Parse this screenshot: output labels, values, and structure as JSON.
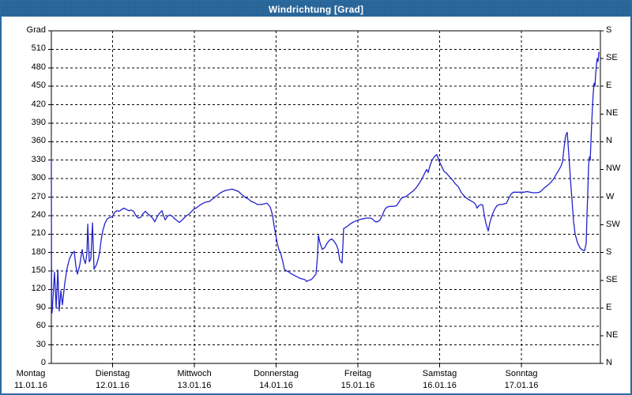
{
  "window": {
    "title": "Windrichtung [Grad]"
  },
  "colors": {
    "titlebar": "#2b6a9e",
    "window_border": "#2b6a9e",
    "title_text": "#ffffff",
    "line": "#2222cc",
    "grid": "#000000",
    "background": "#ffffff"
  },
  "chart_data": {
    "type": "line",
    "title": "Windrichtung [Grad]",
    "grid": "dashed",
    "y_axis_left": {
      "unit": "Grad",
      "min": 0,
      "max": 540,
      "step": 30,
      "tick_labels": [
        "0",
        "30",
        "60",
        "90",
        "120",
        "150",
        "180",
        "210",
        "240",
        "270",
        "300",
        "330",
        "360",
        "390",
        "420",
        "450",
        "480",
        "510"
      ]
    },
    "y_axis_right": {
      "step": 45,
      "labels_bottom_to_top": [
        "N",
        "NE",
        "E",
        "SE",
        "S",
        "SW",
        "W",
        "NW",
        "N",
        "NE",
        "E",
        "SE",
        "S"
      ]
    },
    "x_axis": {
      "unit": "days_from_monday_midnight",
      "domain": [
        0.251,
        6.966
      ],
      "midnight_gridlines": [
        1,
        2,
        3,
        4,
        5,
        6
      ],
      "day_labels": [
        {
          "name": "Montag",
          "date": "11.01.16",
          "t": 0
        },
        {
          "name": "Dienstag",
          "date": "12.01.16",
          "t": 1
        },
        {
          "name": "Mittwoch",
          "date": "13.01.16",
          "t": 2
        },
        {
          "name": "Donnerstag",
          "date": "14.01.16",
          "t": 3
        },
        {
          "name": "Freitag",
          "date": "15.01.16",
          "t": 4
        },
        {
          "name": "Samstag",
          "date": "16.01.16",
          "t": 5
        },
        {
          "name": "Sonntag",
          "date": "17.01.16",
          "t": 6
        }
      ]
    },
    "series": [
      {
        "name": "Windrichtung",
        "color": "#2222cc",
        "points": [
          [
            0.251,
            331
          ],
          [
            0.254,
            100
          ],
          [
            0.26,
            82
          ],
          [
            0.29,
            148
          ],
          [
            0.31,
            90
          ],
          [
            0.33,
            152
          ],
          [
            0.348,
            85
          ],
          [
            0.367,
            118
          ],
          [
            0.386,
            95
          ],
          [
            0.415,
            130
          ],
          [
            0.444,
            155
          ],
          [
            0.473,
            170
          ],
          [
            0.502,
            178
          ],
          [
            0.531,
            182
          ],
          [
            0.551,
            158
          ],
          [
            0.57,
            145
          ],
          [
            0.599,
            160
          ],
          [
            0.628,
            185
          ],
          [
            0.647,
            170
          ],
          [
            0.667,
            162
          ],
          [
            0.686,
            178
          ],
          [
            0.696,
            226
          ],
          [
            0.715,
            165
          ],
          [
            0.734,
            170
          ],
          [
            0.754,
            228
          ],
          [
            0.773,
            153
          ],
          [
            0.802,
            160
          ],
          [
            0.821,
            168
          ],
          [
            0.841,
            180
          ],
          [
            0.86,
            200
          ],
          [
            0.879,
            215
          ],
          [
            0.908,
            228
          ],
          [
            0.937,
            235
          ],
          [
            0.966,
            237
          ],
          [
            0.995,
            238
          ],
          [
            1.024,
            245
          ],
          [
            1.053,
            248
          ],
          [
            1.082,
            247
          ],
          [
            1.111,
            250
          ],
          [
            1.14,
            252
          ],
          [
            1.169,
            250
          ],
          [
            1.198,
            248
          ],
          [
            1.227,
            249
          ],
          [
            1.256,
            247
          ],
          [
            1.285,
            240
          ],
          [
            1.314,
            236
          ],
          [
            1.343,
            237
          ],
          [
            1.372,
            243
          ],
          [
            1.401,
            247
          ],
          [
            1.43,
            243
          ],
          [
            1.459,
            240
          ],
          [
            1.488,
            236
          ],
          [
            1.517,
            230
          ],
          [
            1.546,
            238
          ],
          [
            1.575,
            244
          ],
          [
            1.604,
            248
          ],
          [
            1.623,
            240
          ],
          [
            1.643,
            233
          ],
          [
            1.672,
            239
          ],
          [
            1.7,
            241
          ],
          [
            1.729,
            239
          ],
          [
            1.758,
            235
          ],
          [
            1.787,
            232
          ],
          [
            1.816,
            229
          ],
          [
            1.845,
            232
          ],
          [
            1.874,
            236
          ],
          [
            1.903,
            240
          ],
          [
            1.932,
            242
          ],
          [
            1.961,
            246
          ],
          [
            1.99,
            250
          ],
          [
            2.029,
            253
          ],
          [
            2.068,
            257
          ],
          [
            2.106,
            260
          ],
          [
            2.145,
            262
          ],
          [
            2.184,
            263
          ],
          [
            2.232,
            268
          ],
          [
            2.271,
            272
          ],
          [
            2.309,
            276
          ],
          [
            2.348,
            279
          ],
          [
            2.387,
            281
          ],
          [
            2.425,
            282
          ],
          [
            2.464,
            283
          ],
          [
            2.503,
            281
          ],
          [
            2.541,
            279
          ],
          [
            2.58,
            274
          ],
          [
            2.618,
            270
          ],
          [
            2.657,
            267
          ],
          [
            2.696,
            263
          ],
          [
            2.734,
            261
          ],
          [
            2.773,
            258
          ],
          [
            2.812,
            258
          ],
          [
            2.85,
            259
          ],
          [
            2.889,
            260
          ],
          [
            2.928,
            254
          ],
          [
            2.957,
            240
          ],
          [
            2.976,
            223
          ],
          [
            2.995,
            209
          ],
          [
            3.014,
            195
          ],
          [
            3.034,
            185
          ],
          [
            3.053,
            180
          ],
          [
            3.082,
            165
          ],
          [
            3.101,
            153
          ],
          [
            3.13,
            150
          ],
          [
            3.15,
            149
          ],
          [
            3.179,
            146
          ],
          [
            3.208,
            144
          ],
          [
            3.237,
            142
          ],
          [
            3.266,
            140
          ],
          [
            3.295,
            138
          ],
          [
            3.324,
            137
          ],
          [
            3.353,
            136
          ],
          [
            3.372,
            133
          ],
          [
            3.401,
            135
          ],
          [
            3.43,
            136
          ],
          [
            3.469,
            142
          ],
          [
            3.488,
            145
          ],
          [
            3.507,
            175
          ],
          [
            3.517,
            208
          ],
          [
            3.536,
            196
          ],
          [
            3.565,
            185
          ],
          [
            3.594,
            188
          ],
          [
            3.623,
            195
          ],
          [
            3.652,
            200
          ],
          [
            3.681,
            202
          ],
          [
            3.71,
            198
          ],
          [
            3.739,
            192
          ],
          [
            3.758,
            185
          ],
          [
            3.778,
            168
          ],
          [
            3.807,
            163
          ],
          [
            3.816,
            190
          ],
          [
            3.826,
            219
          ],
          [
            3.855,
            221
          ],
          [
            3.884,
            224
          ],
          [
            3.913,
            227
          ],
          [
            3.952,
            230
          ],
          [
            3.99,
            232
          ],
          [
            4.029,
            234
          ],
          [
            4.068,
            235
          ],
          [
            4.106,
            236
          ],
          [
            4.145,
            236
          ],
          [
            4.174,
            235
          ],
          [
            4.213,
            230
          ],
          [
            4.242,
            230
          ],
          [
            4.271,
            233
          ],
          [
            4.3,
            241
          ],
          [
            4.329,
            250
          ],
          [
            4.357,
            254
          ],
          [
            4.396,
            255
          ],
          [
            4.435,
            255
          ],
          [
            4.473,
            256
          ],
          [
            4.502,
            262
          ],
          [
            4.531,
            268
          ],
          [
            4.56,
            270
          ],
          [
            4.589,
            271
          ],
          [
            4.618,
            274
          ],
          [
            4.647,
            277
          ],
          [
            4.676,
            280
          ],
          [
            4.705,
            284
          ],
          [
            4.734,
            289
          ],
          [
            4.763,
            295
          ],
          [
            4.792,
            302
          ],
          [
            4.821,
            310
          ],
          [
            4.841,
            315
          ],
          [
            4.86,
            310
          ],
          [
            4.879,
            320
          ],
          [
            4.908,
            330
          ],
          [
            4.937,
            336
          ],
          [
            4.966,
            339
          ],
          [
            4.995,
            328
          ],
          [
            5.024,
            320
          ],
          [
            5.053,
            312
          ],
          [
            5.082,
            309
          ],
          [
            5.121,
            303
          ],
          [
            5.15,
            299
          ],
          [
            5.188,
            292
          ],
          [
            5.227,
            287
          ],
          [
            5.266,
            277
          ],
          [
            5.304,
            271
          ],
          [
            5.343,
            267
          ],
          [
            5.382,
            264
          ],
          [
            5.42,
            261
          ],
          [
            5.44,
            258
          ],
          [
            5.459,
            252
          ],
          [
            5.478,
            256
          ],
          [
            5.507,
            258
          ],
          [
            5.526,
            257
          ],
          [
            5.546,
            241
          ],
          [
            5.565,
            228
          ],
          [
            5.584,
            219
          ],
          [
            5.594,
            215
          ],
          [
            5.613,
            228
          ],
          [
            5.642,
            241
          ],
          [
            5.671,
            250
          ],
          [
            5.7,
            256
          ],
          [
            5.729,
            258
          ],
          [
            5.758,
            258
          ],
          [
            5.787,
            259
          ],
          [
            5.816,
            260
          ],
          [
            5.845,
            268
          ],
          [
            5.874,
            275
          ],
          [
            5.903,
            278
          ],
          [
            5.942,
            278
          ],
          [
            5.99,
            278
          ],
          [
            6.029,
            278
          ],
          [
            6.068,
            279
          ],
          [
            6.106,
            278
          ],
          [
            6.145,
            277
          ],
          [
            6.184,
            277
          ],
          [
            6.222,
            278
          ],
          [
            6.251,
            281
          ],
          [
            6.28,
            285
          ],
          [
            6.309,
            288
          ],
          [
            6.338,
            291
          ],
          [
            6.367,
            295
          ],
          [
            6.396,
            300
          ],
          [
            6.425,
            307
          ],
          [
            6.454,
            313
          ],
          [
            6.483,
            320
          ],
          [
            6.502,
            327
          ],
          [
            6.522,
            350
          ],
          [
            6.541,
            370
          ],
          [
            6.56,
            375
          ],
          [
            6.58,
            340
          ],
          [
            6.599,
            300
          ],
          [
            6.618,
            266
          ],
          [
            6.637,
            232
          ],
          [
            6.657,
            210
          ],
          [
            6.686,
            196
          ],
          [
            6.715,
            188
          ],
          [
            6.744,
            184
          ],
          [
            6.773,
            183
          ],
          [
            6.792,
            195
          ],
          [
            6.802,
            240
          ],
          [
            6.812,
            280
          ],
          [
            6.821,
            320
          ],
          [
            6.831,
            335
          ],
          [
            6.841,
            330
          ],
          [
            6.85,
            360
          ],
          [
            6.86,
            390
          ],
          [
            6.87,
            420
          ],
          [
            6.879,
            440
          ],
          [
            6.889,
            455
          ],
          [
            6.899,
            450
          ],
          [
            6.908,
            470
          ],
          [
            6.918,
            485
          ],
          [
            6.927,
            495
          ],
          [
            6.937,
            490
          ],
          [
            6.947,
            505
          ]
        ]
      }
    ]
  }
}
